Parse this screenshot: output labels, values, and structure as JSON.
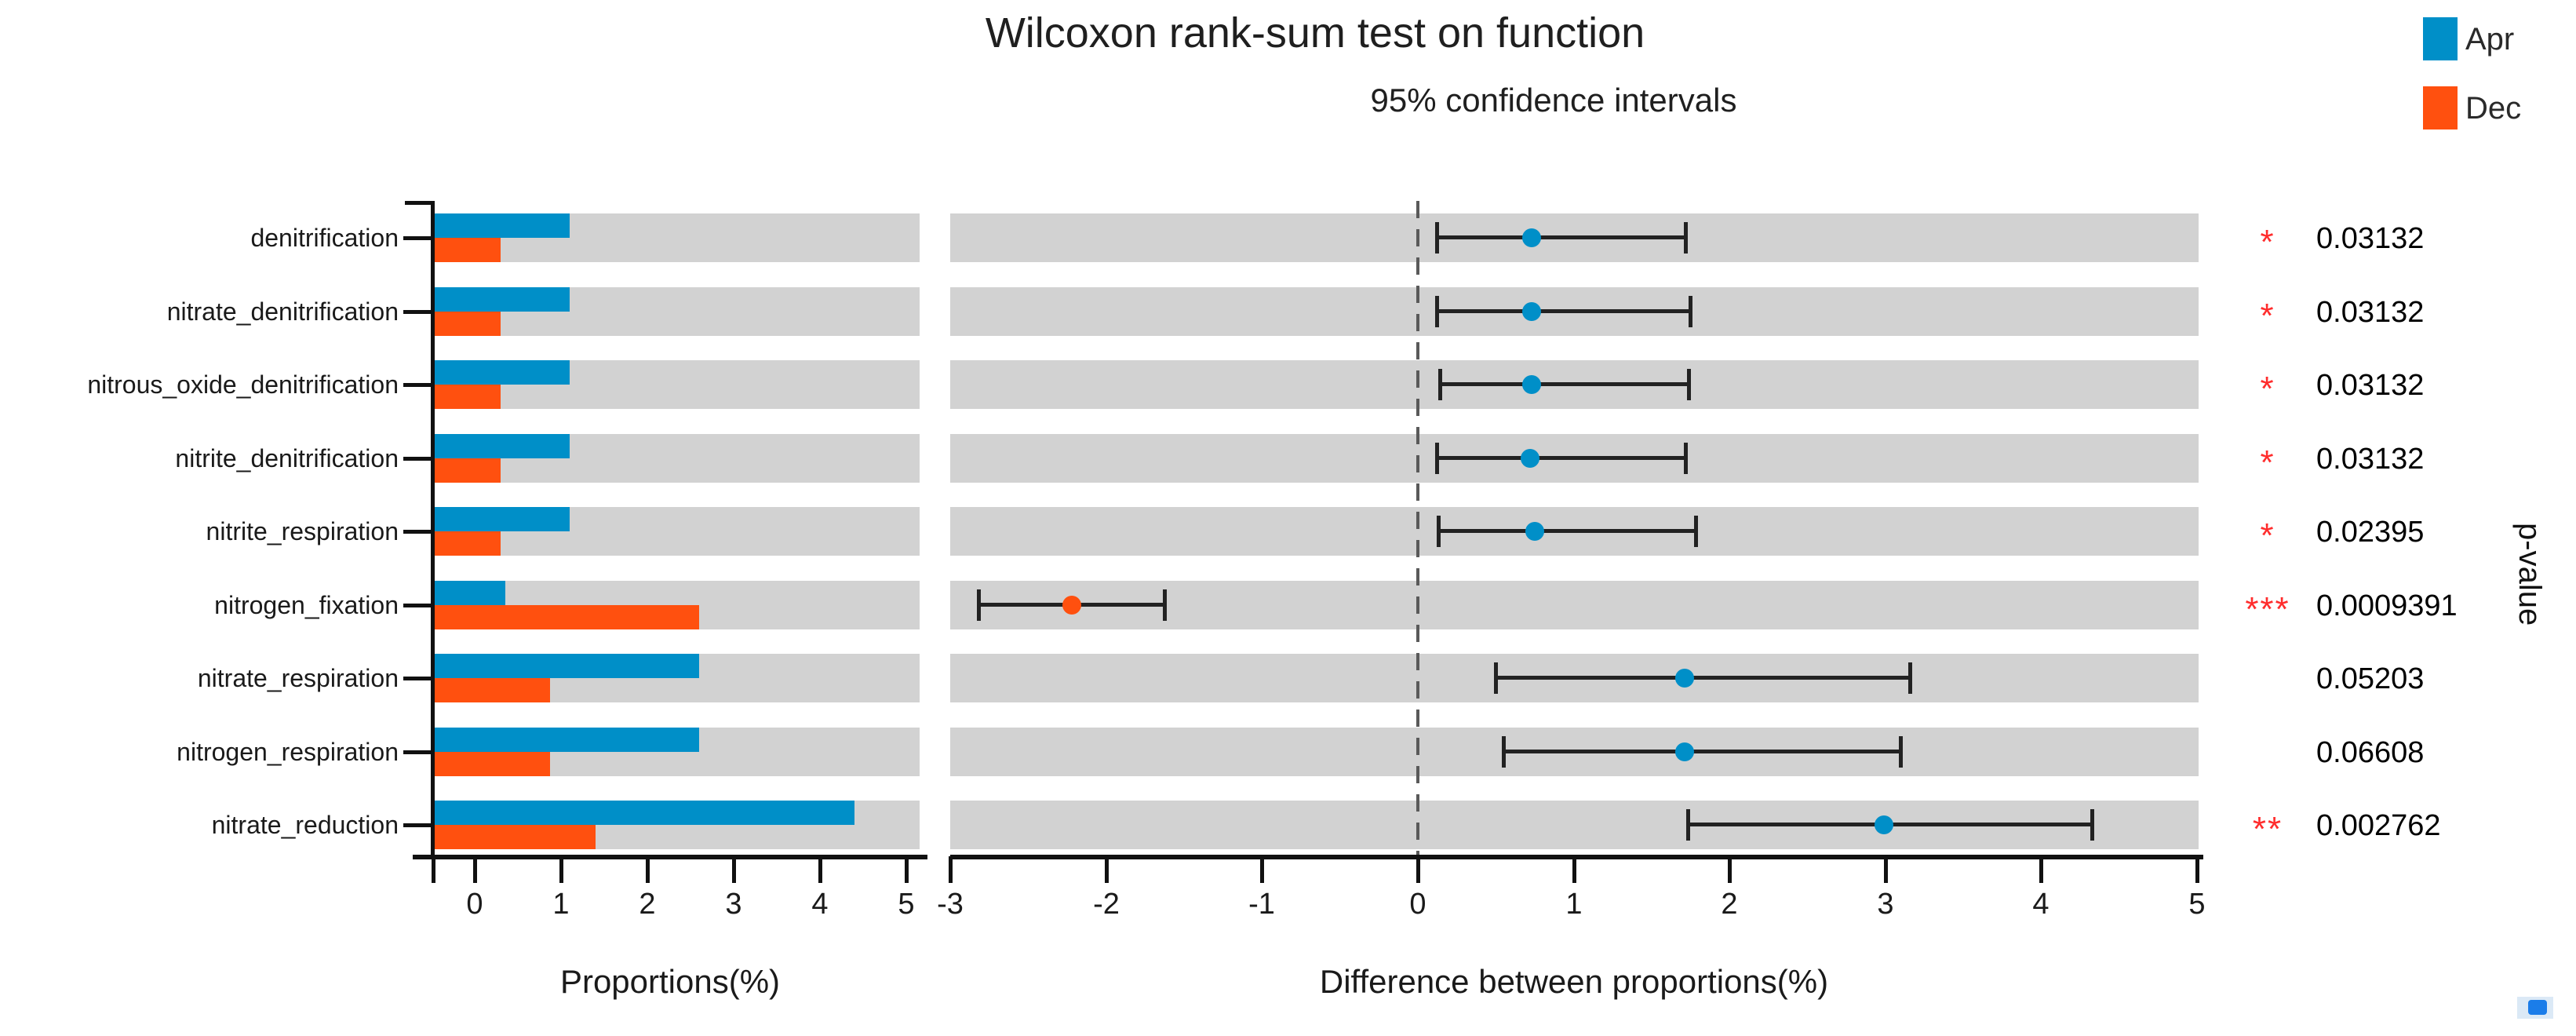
{
  "title": "Wilcoxon rank-sum test on function",
  "subtitle": "95% confidence intervals",
  "legend": {
    "items": [
      {
        "label": "Apr",
        "color": "#008FC8"
      },
      {
        "label": "Dec",
        "color": "#FF500F"
      }
    ]
  },
  "colors": {
    "apr": "#008FC8",
    "dec": "#FF500F",
    "band": "#d2d2d2",
    "star": "#ff2d2d",
    "axis": "#111111",
    "error_bar": "#222222"
  },
  "left_axis": {
    "xlabel": "Proportions(%)",
    "ticks": [
      "0",
      "1",
      "2",
      "3",
      "4",
      "5"
    ]
  },
  "mid_axis": {
    "xlabel": "Difference between proportions(%)",
    "ticks": [
      "-3",
      "-2",
      "-1",
      "0",
      "1",
      "2",
      "3",
      "4",
      "5"
    ]
  },
  "right_column": {
    "header": "p-value",
    "rows": [
      {
        "stars": "*",
        "value": "0.03132"
      },
      {
        "stars": "*",
        "value": "0.03132"
      },
      {
        "stars": "*",
        "value": "0.03132"
      },
      {
        "stars": "*",
        "value": "0.03132"
      },
      {
        "stars": "*",
        "value": "0.02395"
      },
      {
        "stars": "***",
        "value": "0.0009391"
      },
      {
        "stars": "",
        "value": "0.05203"
      },
      {
        "stars": "",
        "value": "0.06608"
      },
      {
        "stars": "**",
        "value": "0.002762"
      }
    ]
  },
  "chart_data": [
    {
      "type": "bar",
      "orientation": "horizontal",
      "title": "Proportions(%)",
      "categories": [
        "denitrification",
        "nitrate_denitrification",
        "nitrous_oxide_denitrification",
        "nitrite_denitrification",
        "nitrite_respiration",
        "nitrogen_fixation",
        "nitrate_respiration",
        "nitrogen_respiration",
        "nitrate_reduction"
      ],
      "series": [
        {
          "name": "Apr",
          "color": "#008FC8",
          "values": [
            1.1,
            1.1,
            1.1,
            1.1,
            1.1,
            0.35,
            2.6,
            2.6,
            4.4
          ]
        },
        {
          "name": "Dec",
          "color": "#FF500F",
          "values": [
            0.3,
            0.3,
            0.3,
            0.3,
            0.3,
            2.6,
            0.87,
            0.87,
            1.4
          ]
        }
      ],
      "xlabel": "Proportions(%)",
      "xlim": [
        0,
        5
      ],
      "xticks": [
        0,
        1,
        2,
        3,
        4,
        5
      ],
      "background_bands": true
    },
    {
      "type": "scatter",
      "title": "95% confidence intervals",
      "xlabel": "Difference between proportions(%)",
      "categories": [
        "denitrification",
        "nitrate_denitrification",
        "nitrous_oxide_denitrification",
        "nitrite_denitrification",
        "nitrite_respiration",
        "nitrogen_fixation",
        "nitrate_respiration",
        "nitrogen_respiration",
        "nitrate_reduction"
      ],
      "points": [
        {
          "mean": 0.73,
          "lo": 0.12,
          "hi": 1.72,
          "group": "apr"
        },
        {
          "mean": 0.73,
          "lo": 0.12,
          "hi": 1.75,
          "group": "apr"
        },
        {
          "mean": 0.73,
          "lo": 0.14,
          "hi": 1.74,
          "group": "apr"
        },
        {
          "mean": 0.72,
          "lo": 0.12,
          "hi": 1.72,
          "group": "apr"
        },
        {
          "mean": 0.75,
          "lo": 0.13,
          "hi": 1.79,
          "group": "apr"
        },
        {
          "mean": -2.22,
          "lo": -2.82,
          "hi": -1.62,
          "group": "dec"
        },
        {
          "mean": 1.71,
          "lo": 0.5,
          "hi": 3.16,
          "group": "apr"
        },
        {
          "mean": 1.71,
          "lo": 0.55,
          "hi": 3.1,
          "group": "apr"
        },
        {
          "mean": 2.99,
          "lo": 1.73,
          "hi": 4.33,
          "group": "apr"
        }
      ],
      "xlim": [
        -3,
        5
      ],
      "xticks": [
        -3,
        -2,
        -1,
        0,
        1,
        2,
        3,
        4,
        5
      ],
      "zero_line": true
    }
  ]
}
